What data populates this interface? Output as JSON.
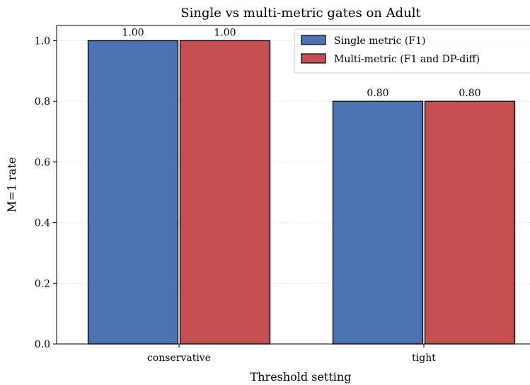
{
  "chart_data": {
    "type": "bar",
    "title": "Single vs multi-metric gates on Adult",
    "xlabel": "Threshold setting",
    "ylabel": "M=1 rate",
    "categories": [
      "conservative",
      "tight"
    ],
    "series": [
      {
        "name": "Single metric (F1)",
        "values": [
          1.0,
          0.8
        ],
        "labels": [
          "1.00",
          "0.80"
        ],
        "color": "#4c72b0"
      },
      {
        "name": "Multi-metric (F1 and DP-diff)",
        "values": [
          1.0,
          0.8
        ],
        "labels": [
          "1.00",
          "0.80"
        ],
        "color": "#c44e52"
      }
    ],
    "ylim": [
      0,
      1.05
    ],
    "yticks": [
      0.0,
      0.2,
      0.4,
      0.6,
      0.8,
      1.0
    ],
    "ytick_labels": [
      "0.0",
      "0.2",
      "0.4",
      "0.6",
      "0.8",
      "1.0"
    ],
    "grid": "y-dotted",
    "legend_position": "top-right"
  }
}
